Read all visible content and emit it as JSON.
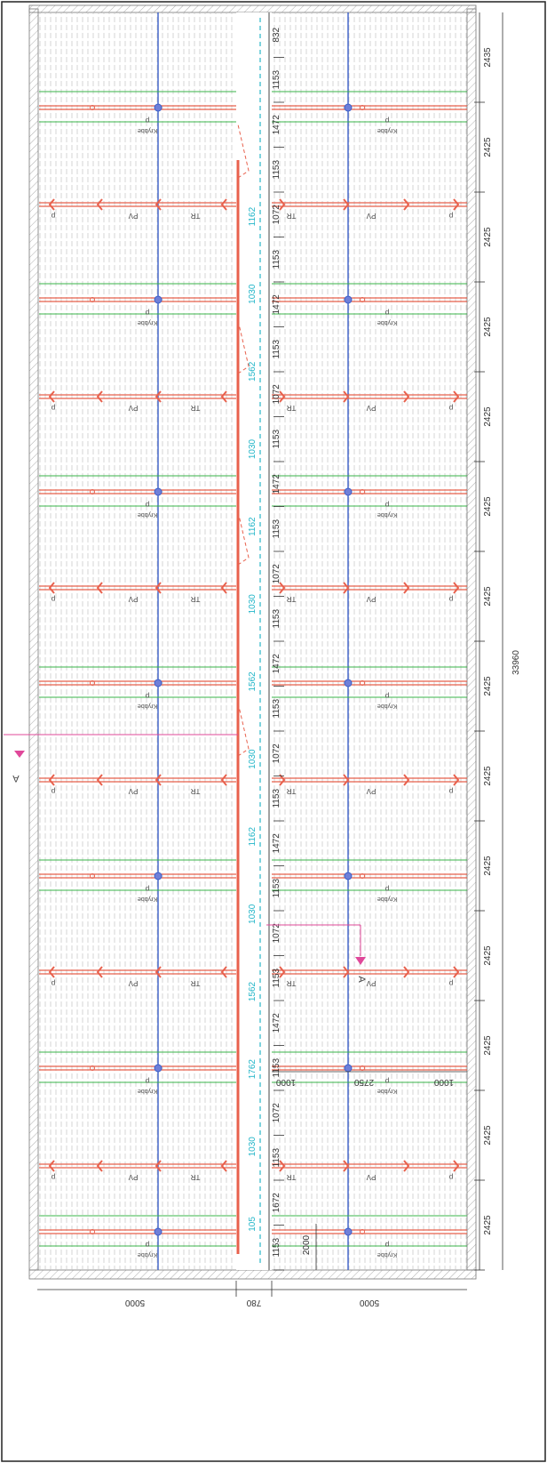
{
  "drawing": {
    "total_dimension": "33960",
    "bay_dimensions": [
      "2435",
      "2425",
      "2425",
      "2425",
      "2425",
      "2425",
      "2425",
      "2425",
      "2425",
      "2425",
      "2425",
      "2425",
      "2425",
      "2425"
    ],
    "bottom_dimensions": [
      "5000",
      "780",
      "5000"
    ],
    "center_dimensions": [
      "832",
      "1153",
      "1472",
      "1153",
      "1072",
      "1153",
      "1472",
      "1153",
      "1072",
      "1153",
      "1472",
      "1153",
      "1072",
      "1153",
      "1472",
      "1153",
      "1072",
      "1153",
      "1472",
      "1153",
      "1072",
      "1153",
      "1472",
      "1153",
      "1072",
      "1153",
      "1672",
      "1153"
    ],
    "cyan_dimensions": [
      "1162",
      "1030",
      "1562",
      "1030",
      "1162",
      "1030",
      "1562",
      "1030",
      "1162",
      "1030",
      "1562",
      "1762",
      "1030",
      "105"
    ],
    "right_small_dims": [
      "1000",
      "2750",
      "1000"
    ],
    "vertical_dim": "2000",
    "row_labels": {
      "krybbe": "Krybbe",
      "p": "p",
      "pv": "PV",
      "tr": "TR"
    },
    "section_marker": "A",
    "colors": {
      "red": "#e8604c",
      "blue": "#3a5ec8",
      "green": "#39b54a",
      "cyan": "#29b6c8",
      "magenta": "#e0489a",
      "grid": "#b9b9b9"
    }
  }
}
